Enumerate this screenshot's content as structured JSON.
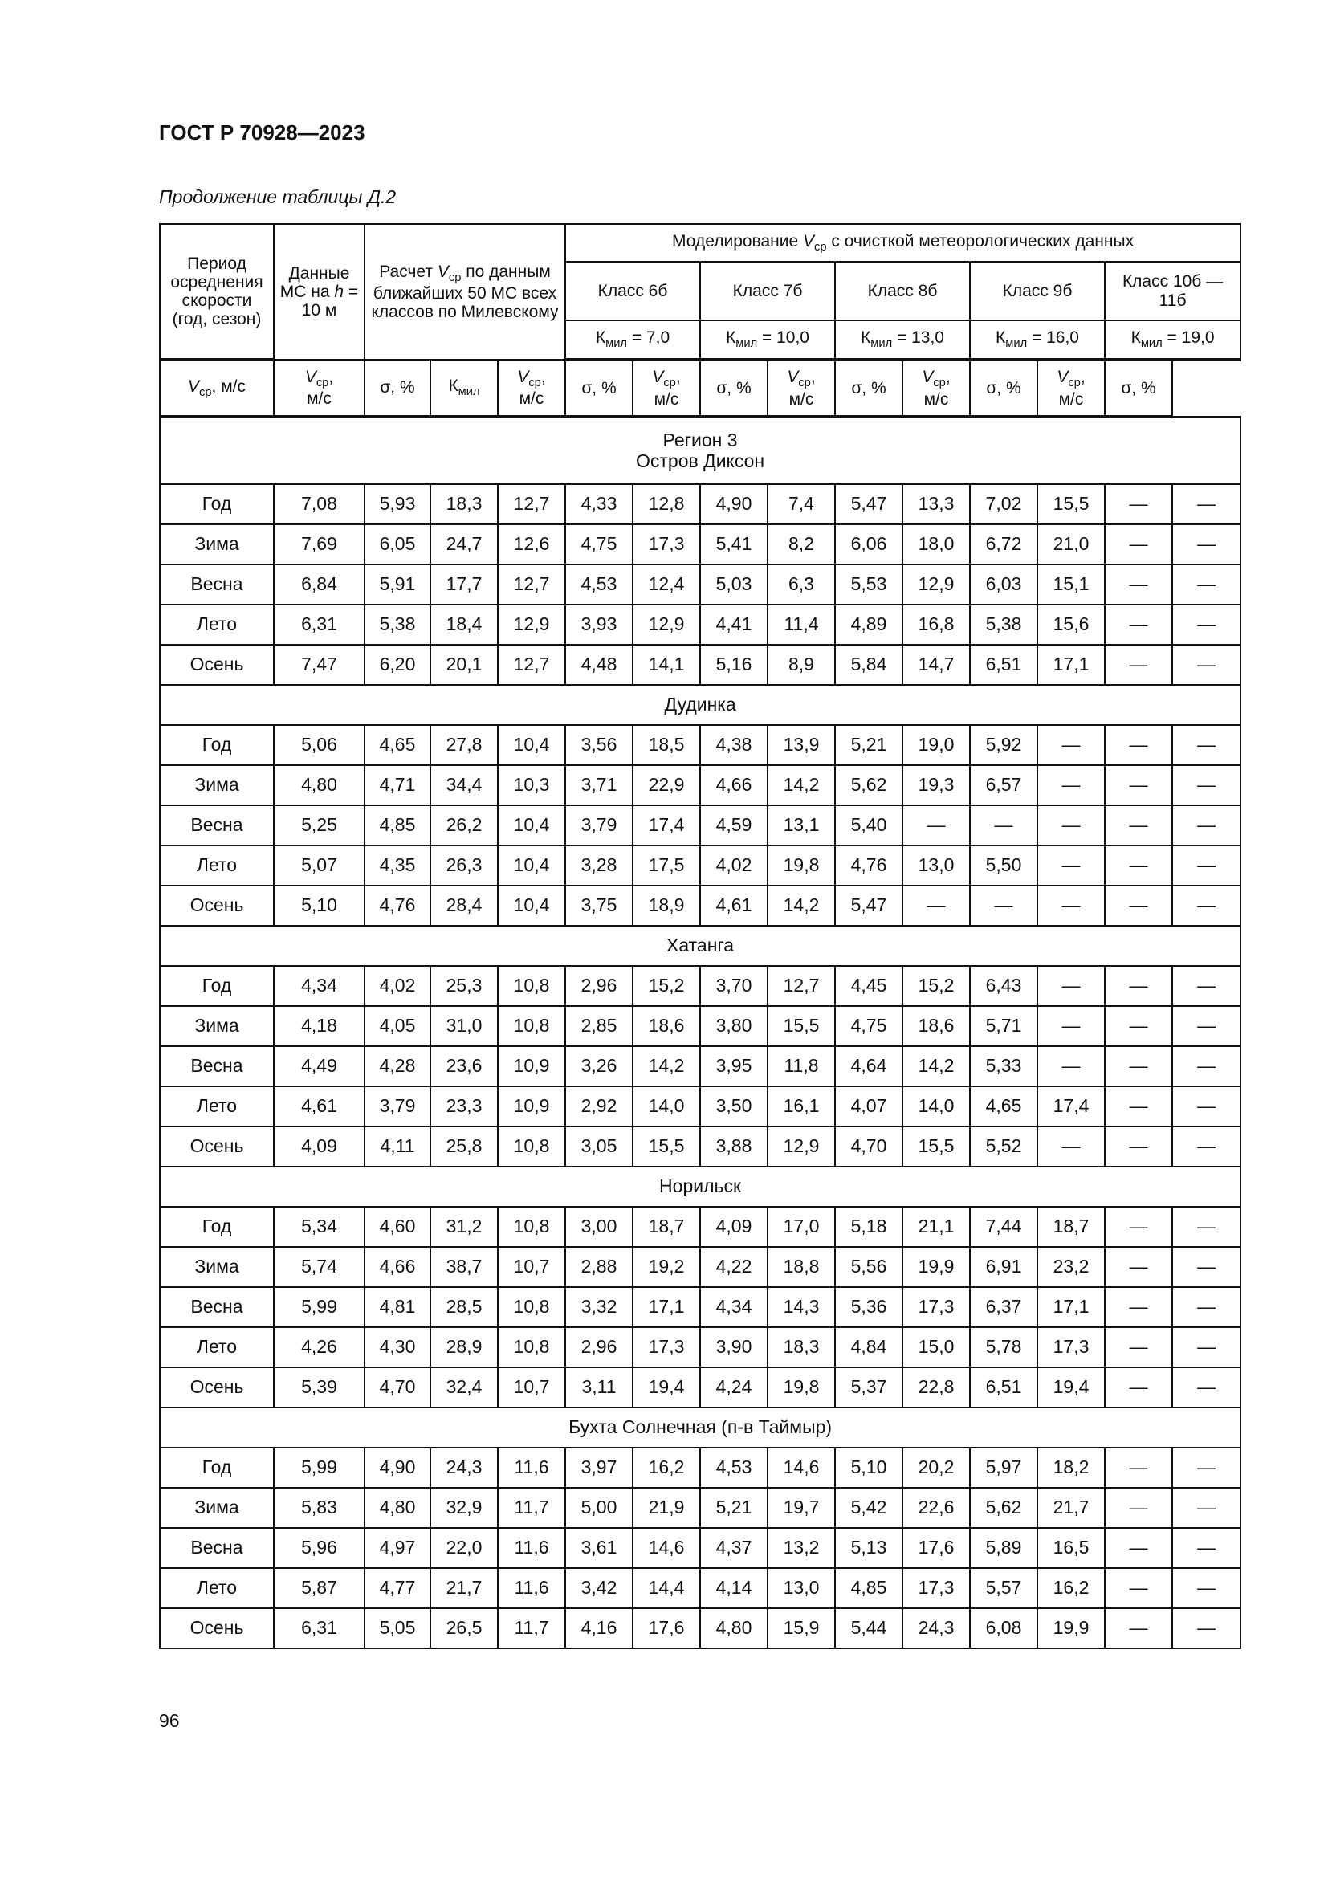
{
  "header": {
    "doc_title": "ГОСТ Р 70928—2023",
    "caption": "Продолжение таблицы Д.2"
  },
  "table_headers": {
    "period": "Период осреднения скорости (год, сезон)",
    "ms_data_pre": "Данные МС на ",
    "ms_data_h": "h",
    "ms_data_post": " = 10 м",
    "calc_pre": "Расчет ",
    "calc_v": "V",
    "calc_sub": "ср",
    "calc_post": " по данным ближайших 50 МС всех классов по Милевскому",
    "model_pre": "Моделирование ",
    "model_v": "V",
    "model_sub": "ср",
    "model_post": " с очисткой метеорологических данных",
    "classes": [
      "Класс 6б",
      "Класс 7б",
      "Класс 8б",
      "Класс 9б",
      "Класс 10б — 11б"
    ],
    "kmil_k": "К",
    "kmil_sub": "мил",
    "kmil_values": [
      "= 7,0",
      "= 10,0",
      "= 13,0",
      "= 16,0",
      "= 19,0"
    ],
    "v": "V",
    "v_sub": "ср",
    "v_unit_ms": ", м/с",
    "v_unit_comma": ",",
    "unit_ms": "м/с",
    "sigma": "σ, %"
  },
  "sections": [
    {
      "title": "Регион 3",
      "subtitle": "Остров Диксон",
      "rows": [
        [
          "Год",
          "7,08",
          "5,93",
          "18,3",
          "12,7",
          "4,33",
          "12,8",
          "4,90",
          "7,4",
          "5,47",
          "13,3",
          "7,02",
          "15,5",
          "—",
          "—"
        ],
        [
          "Зима",
          "7,69",
          "6,05",
          "24,7",
          "12,6",
          "4,75",
          "17,3",
          "5,41",
          "8,2",
          "6,06",
          "18,0",
          "6,72",
          "21,0",
          "—",
          "—"
        ],
        [
          "Весна",
          "6,84",
          "5,91",
          "17,7",
          "12,7",
          "4,53",
          "12,4",
          "5,03",
          "6,3",
          "5,53",
          "12,9",
          "6,03",
          "15,1",
          "—",
          "—"
        ],
        [
          "Лето",
          "6,31",
          "5,38",
          "18,4",
          "12,9",
          "3,93",
          "12,9",
          "4,41",
          "11,4",
          "4,89",
          "16,8",
          "5,38",
          "15,6",
          "—",
          "—"
        ],
        [
          "Осень",
          "7,47",
          "6,20",
          "20,1",
          "12,7",
          "4,48",
          "14,1",
          "5,16",
          "8,9",
          "5,84",
          "14,7",
          "6,51",
          "17,1",
          "—",
          "—"
        ]
      ]
    },
    {
      "title": "Дудинка",
      "rows": [
        [
          "Год",
          "5,06",
          "4,65",
          "27,8",
          "10,4",
          "3,56",
          "18,5",
          "4,38",
          "13,9",
          "5,21",
          "19,0",
          "5,92",
          "—",
          "—",
          "—"
        ],
        [
          "Зима",
          "4,80",
          "4,71",
          "34,4",
          "10,3",
          "3,71",
          "22,9",
          "4,66",
          "14,2",
          "5,62",
          "19,3",
          "6,57",
          "—",
          "—",
          "—"
        ],
        [
          "Весна",
          "5,25",
          "4,85",
          "26,2",
          "10,4",
          "3,79",
          "17,4",
          "4,59",
          "13,1",
          "5,40",
          "—",
          "—",
          "—",
          "—",
          "—"
        ],
        [
          "Лето",
          "5,07",
          "4,35",
          "26,3",
          "10,4",
          "3,28",
          "17,5",
          "4,02",
          "19,8",
          "4,76",
          "13,0",
          "5,50",
          "—",
          "—",
          "—"
        ],
        [
          "Осень",
          "5,10",
          "4,76",
          "28,4",
          "10,4",
          "3,75",
          "18,9",
          "4,61",
          "14,2",
          "5,47",
          "—",
          "—",
          "—",
          "—",
          "—"
        ]
      ]
    },
    {
      "title": "Хатанга",
      "rows": [
        [
          "Год",
          "4,34",
          "4,02",
          "25,3",
          "10,8",
          "2,96",
          "15,2",
          "3,70",
          "12,7",
          "4,45",
          "15,2",
          "6,43",
          "—",
          "—",
          "—"
        ],
        [
          "Зима",
          "4,18",
          "4,05",
          "31,0",
          "10,8",
          "2,85",
          "18,6",
          "3,80",
          "15,5",
          "4,75",
          "18,6",
          "5,71",
          "—",
          "—",
          "—"
        ],
        [
          "Весна",
          "4,49",
          "4,28",
          "23,6",
          "10,9",
          "3,26",
          "14,2",
          "3,95",
          "11,8",
          "4,64",
          "14,2",
          "5,33",
          "—",
          "—",
          "—"
        ],
        [
          "Лето",
          "4,61",
          "3,79",
          "23,3",
          "10,9",
          "2,92",
          "14,0",
          "3,50",
          "16,1",
          "4,07",
          "14,0",
          "4,65",
          "17,4",
          "—",
          "—"
        ],
        [
          "Осень",
          "4,09",
          "4,11",
          "25,8",
          "10,8",
          "3,05",
          "15,5",
          "3,88",
          "12,9",
          "4,70",
          "15,5",
          "5,52",
          "—",
          "—",
          "—"
        ]
      ]
    },
    {
      "title": "Норильск",
      "rows": [
        [
          "Год",
          "5,34",
          "4,60",
          "31,2",
          "10,8",
          "3,00",
          "18,7",
          "4,09",
          "17,0",
          "5,18",
          "21,1",
          "7,44",
          "18,7",
          "—",
          "—"
        ],
        [
          "Зима",
          "5,74",
          "4,66",
          "38,7",
          "10,7",
          "2,88",
          "19,2",
          "4,22",
          "18,8",
          "5,56",
          "19,9",
          "6,91",
          "23,2",
          "—",
          "—"
        ],
        [
          "Весна",
          "5,99",
          "4,81",
          "28,5",
          "10,8",
          "3,32",
          "17,1",
          "4,34",
          "14,3",
          "5,36",
          "17,3",
          "6,37",
          "17,1",
          "—",
          "—"
        ],
        [
          "Лето",
          "4,26",
          "4,30",
          "28,9",
          "10,8",
          "2,96",
          "17,3",
          "3,90",
          "18,3",
          "4,84",
          "15,0",
          "5,78",
          "17,3",
          "—",
          "—"
        ],
        [
          "Осень",
          "5,39",
          "4,70",
          "32,4",
          "10,7",
          "3,11",
          "19,4",
          "4,24",
          "19,8",
          "5,37",
          "22,8",
          "6,51",
          "19,4",
          "—",
          "—"
        ]
      ]
    },
    {
      "title": "Бухта Солнечная (п-в Таймыр)",
      "rows": [
        [
          "Год",
          "5,99",
          "4,90",
          "24,3",
          "11,6",
          "3,97",
          "16,2",
          "4,53",
          "14,6",
          "5,10",
          "20,2",
          "5,97",
          "18,2",
          "—",
          "—"
        ],
        [
          "Зима",
          "5,83",
          "4,80",
          "32,9",
          "11,7",
          "5,00",
          "21,9",
          "5,21",
          "19,7",
          "5,42",
          "22,6",
          "5,62",
          "21,7",
          "—",
          "—"
        ],
        [
          "Весна",
          "5,96",
          "4,97",
          "22,0",
          "11,6",
          "3,61",
          "14,6",
          "4,37",
          "13,2",
          "5,13",
          "17,6",
          "5,89",
          "16,5",
          "—",
          "—"
        ],
        [
          "Лето",
          "5,87",
          "4,77",
          "21,7",
          "11,6",
          "3,42",
          "14,4",
          "4,14",
          "13,0",
          "4,85",
          "17,3",
          "5,57",
          "16,2",
          "—",
          "—"
        ],
        [
          "Осень",
          "6,31",
          "5,05",
          "26,5",
          "11,7",
          "4,16",
          "17,6",
          "4,80",
          "15,9",
          "5,44",
          "24,3",
          "6,08",
          "19,9",
          "—",
          "—"
        ]
      ]
    }
  ],
  "footer": {
    "page_number": "96"
  }
}
